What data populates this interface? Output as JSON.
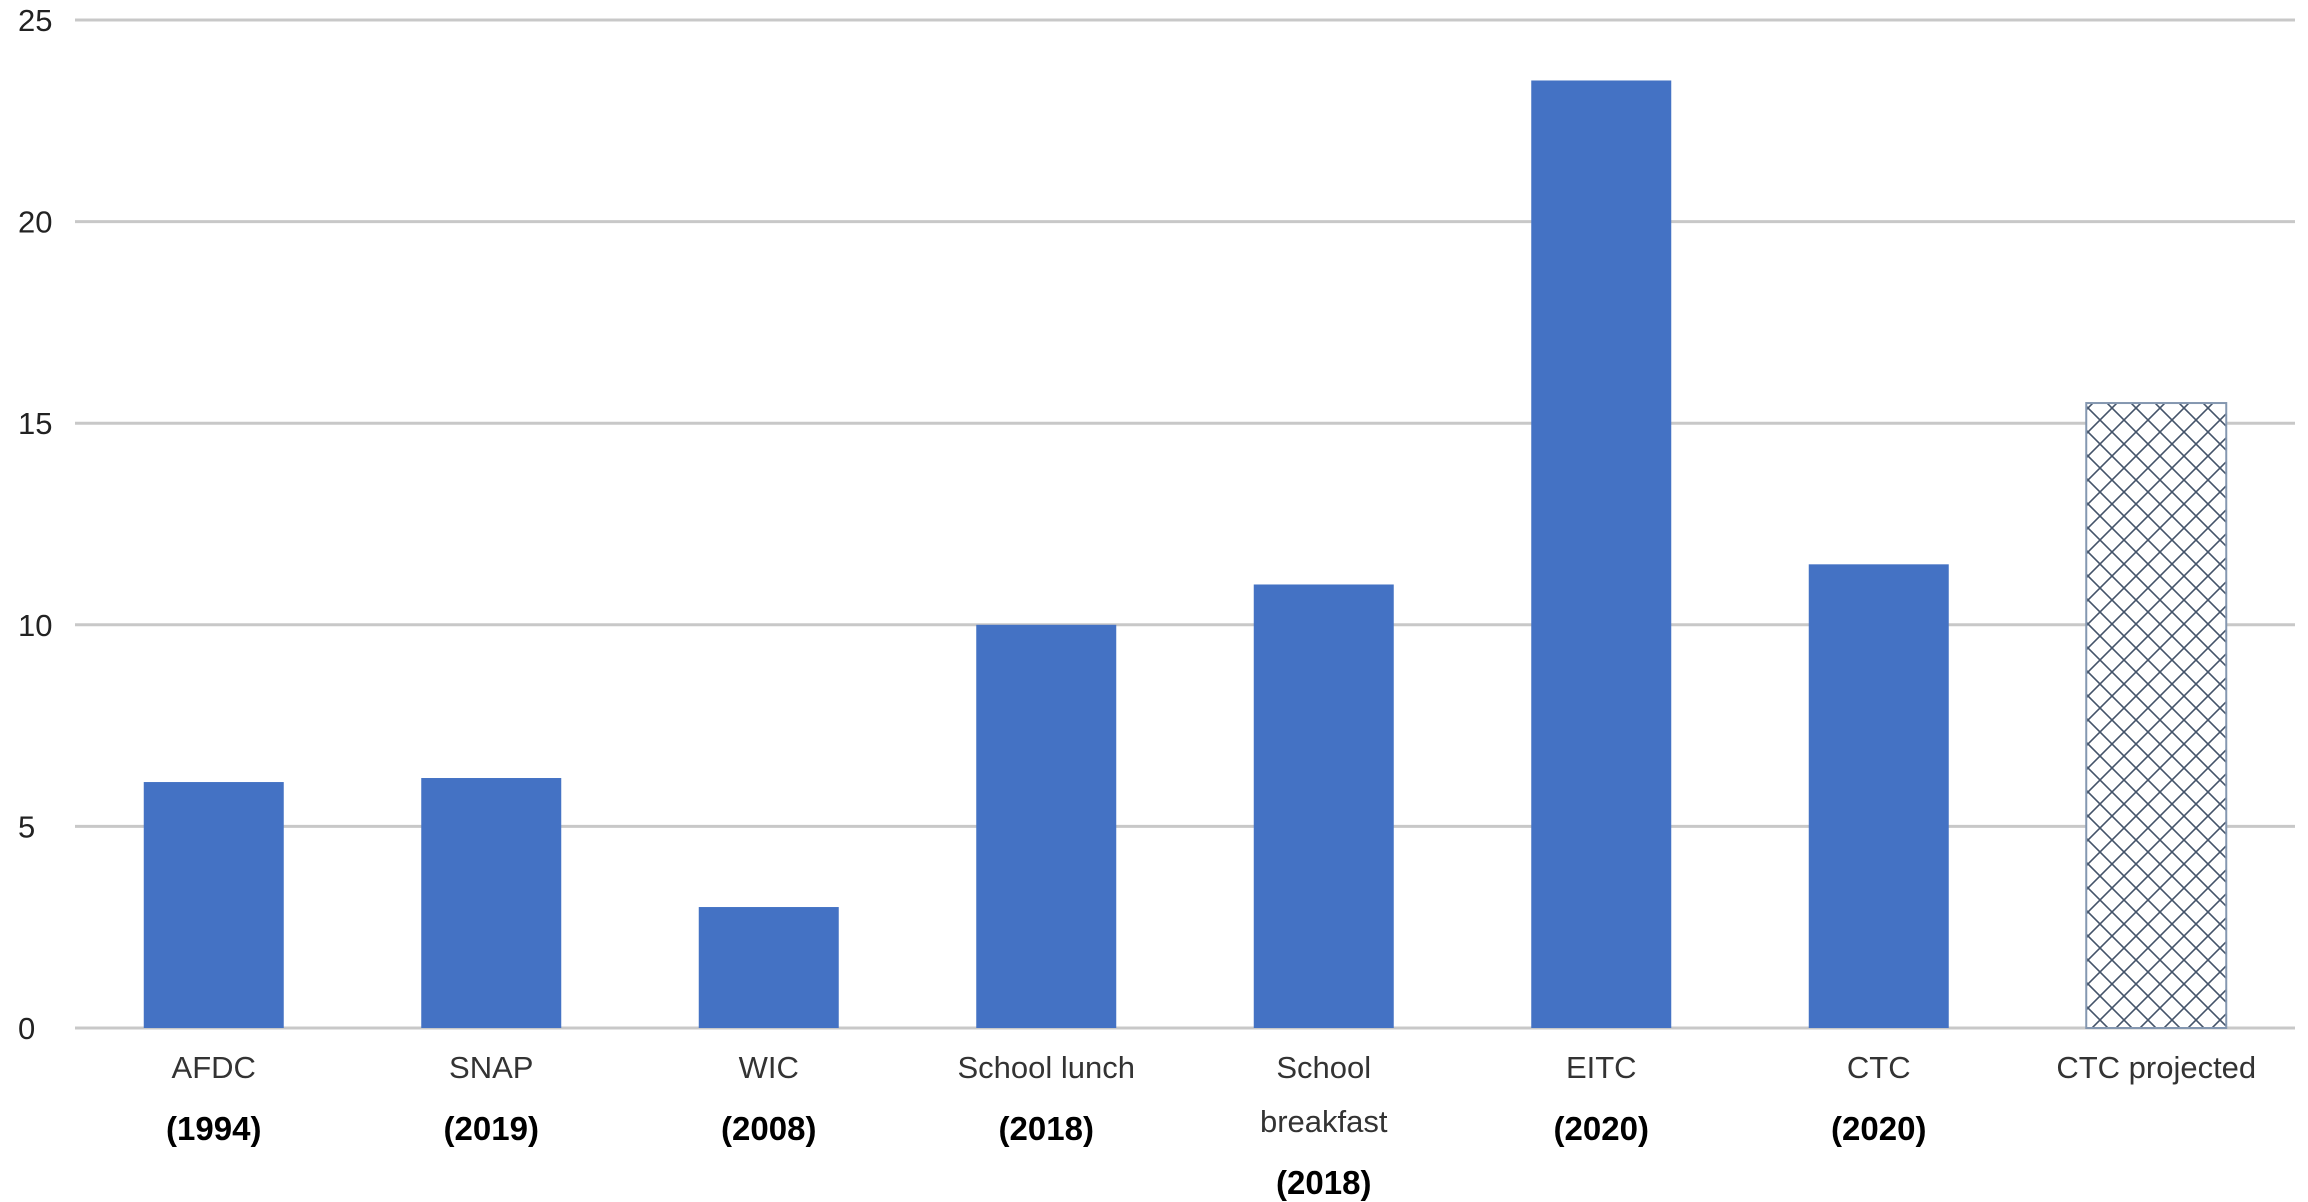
{
  "chart_data": {
    "type": "bar",
    "title": "",
    "xlabel": "",
    "ylabel": "",
    "ylim": [
      0,
      25
    ],
    "yticks": [
      0,
      5,
      10,
      15,
      20,
      25
    ],
    "grid": true,
    "legend": "none",
    "bar_color": "#4472C4",
    "projected_pattern_color": "#44546A",
    "categories": [
      {
        "label_lines": [
          "AFDC"
        ],
        "year": "(1994)",
        "value": 6.1,
        "style": "solid"
      },
      {
        "label_lines": [
          "SNAP"
        ],
        "year": "(2019)",
        "value": 6.2,
        "style": "solid"
      },
      {
        "label_lines": [
          "WIC"
        ],
        "year": "(2008)",
        "value": 3.0,
        "style": "solid"
      },
      {
        "label_lines": [
          "School lunch"
        ],
        "year": "(2018)",
        "value": 10.0,
        "style": "solid"
      },
      {
        "label_lines": [
          "School",
          "breakfast"
        ],
        "year": "(2018)",
        "value": 11.0,
        "style": "solid"
      },
      {
        "label_lines": [
          "EITC"
        ],
        "year": "(2020)",
        "value": 23.5,
        "style": "solid"
      },
      {
        "label_lines": [
          "CTC"
        ],
        "year": "(2020)",
        "value": 11.5,
        "style": "solid"
      },
      {
        "label_lines": [
          "CTC projected"
        ],
        "year": "",
        "value": 15.5,
        "style": "crosshatch"
      }
    ]
  }
}
